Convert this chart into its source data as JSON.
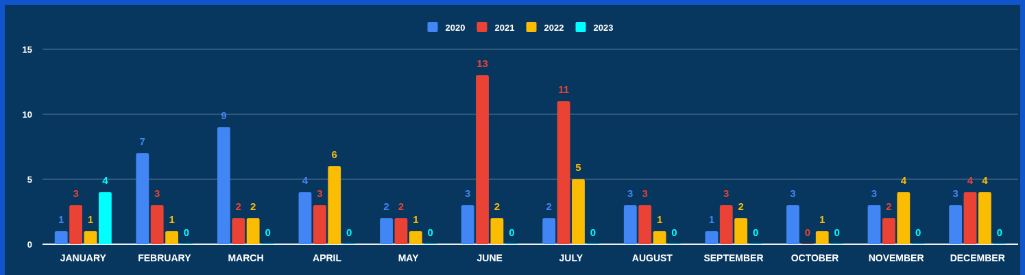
{
  "chart_data": {
    "type": "bar",
    "categories": [
      "JANUARY",
      "FEBRUARY",
      "MARCH",
      "APRIL",
      "MAY",
      "JUNE",
      "JULY",
      "AUGUST",
      "SEPTEMBER",
      "OCTOBER",
      "NOVEMBER",
      "DECEMBER"
    ],
    "series": [
      {
        "name": "2020",
        "color": "#4285f4",
        "values": [
          1,
          7,
          9,
          4,
          2,
          3,
          2,
          3,
          1,
          3,
          3,
          3
        ]
      },
      {
        "name": "2021",
        "color": "#ea4335",
        "values": [
          3,
          3,
          2,
          3,
          2,
          13,
          11,
          3,
          3,
          0,
          2,
          4
        ]
      },
      {
        "name": "2022",
        "color": "#fbbc04",
        "values": [
          1,
          1,
          2,
          6,
          1,
          2,
          5,
          1,
          2,
          1,
          4,
          4
        ]
      },
      {
        "name": "2023",
        "color": "#00ffff",
        "values": [
          4,
          0,
          0,
          0,
          0,
          0,
          0,
          0,
          0,
          0,
          0,
          0
        ]
      }
    ],
    "ylim": [
      0,
      15
    ],
    "yticks": [
      0,
      5,
      10,
      15
    ],
    "grid": "y",
    "legend": "top",
    "data_labels": true
  }
}
